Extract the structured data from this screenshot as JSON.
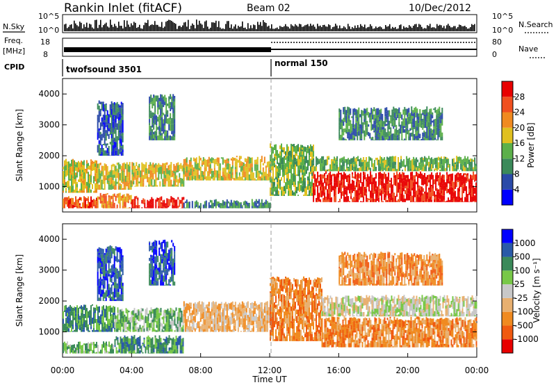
{
  "header": {
    "station": "Rankin Inlet (fitACF)",
    "beam": "Beam 02",
    "date": "10/Dec/2012"
  },
  "strip": {
    "nsky_label": "N.Sky",
    "nsearch_label": "N.Search",
    "freq_label_1": "Freq.",
    "freq_label_2": "[MHz]",
    "nave_label": "Nave",
    "cpid_label": "CPID",
    "nsky_ticks": [
      "10^5",
      "10^0"
    ],
    "nsearch_ticks": [
      "10^5",
      "10^0"
    ],
    "freq_ticks": [
      "18",
      "8"
    ],
    "nave_ticks": [
      "80",
      "0"
    ],
    "cpid_segments": [
      {
        "name": "twofsound 3501",
        "start_hr": 0,
        "end_hr": 12
      },
      {
        "name": "normal 150",
        "start_hr": 12,
        "end_hr": 24
      }
    ]
  },
  "chart_data": [
    {
      "type": "heatmap",
      "title": "",
      "parameter": "Power",
      "xlabel": "",
      "ylabel": "Slant Range [km]",
      "xlim_hr": [
        0,
        24
      ],
      "ylim": [
        180,
        4500
      ],
      "yticks": [
        1000,
        2000,
        3000,
        4000
      ],
      "colorbar": {
        "label": "Power [dB]",
        "colors": [
          "#0000ff",
          "#2a4aa8",
          "#3b8a5a",
          "#5cb04a",
          "#e0c020",
          "#f08a20",
          "#f05020",
          "#e80000"
        ],
        "tick_labels": [
          "4",
          "8",
          "12",
          "16",
          "20",
          "24",
          "28"
        ]
      },
      "bands": [
        {
          "start_hr": 0,
          "end_hr": 2.0,
          "y_lo": 300,
          "y_hi": 700,
          "level": 6
        },
        {
          "start_hr": 0,
          "end_hr": 2.0,
          "y_lo": 800,
          "y_hi": 1900,
          "level": 4
        },
        {
          "start_hr": 2.0,
          "end_hr": 4.0,
          "y_lo": 300,
          "y_hi": 800,
          "level": 5
        },
        {
          "start_hr": 2.0,
          "end_hr": 4.0,
          "y_lo": 900,
          "y_hi": 1800,
          "level": 4
        },
        {
          "start_hr": 4.0,
          "end_hr": 7.0,
          "y_lo": 300,
          "y_hi": 700,
          "level": 7
        },
        {
          "start_hr": 4.0,
          "end_hr": 7.0,
          "y_lo": 1000,
          "y_hi": 1800,
          "level": 4
        },
        {
          "start_hr": 7.0,
          "end_hr": 12.0,
          "y_lo": 1200,
          "y_hi": 2000,
          "level": 4
        },
        {
          "start_hr": 7.0,
          "end_hr": 12.0,
          "y_lo": 300,
          "y_hi": 600,
          "level": 2
        },
        {
          "start_hr": 12.0,
          "end_hr": 14.5,
          "y_lo": 700,
          "y_hi": 2400,
          "level": 3
        },
        {
          "start_hr": 14.5,
          "end_hr": 24.0,
          "y_lo": 500,
          "y_hi": 1500,
          "level": 7
        },
        {
          "start_hr": 14.5,
          "end_hr": 24.0,
          "y_lo": 1500,
          "y_hi": 2000,
          "level": 3
        },
        {
          "start_hr": 16.0,
          "end_hr": 22.0,
          "y_lo": 2500,
          "y_hi": 3600,
          "level": 2
        },
        {
          "start_hr": 2.0,
          "end_hr": 3.5,
          "y_lo": 2000,
          "y_hi": 3800,
          "level": 1
        },
        {
          "start_hr": 5.0,
          "end_hr": 6.5,
          "y_lo": 2500,
          "y_hi": 4000,
          "level": 2
        }
      ]
    },
    {
      "type": "heatmap",
      "title": "",
      "parameter": "Velocity",
      "xlabel": "Time UT",
      "ylabel": "Slant Range [km]",
      "xlim_hr": [
        0,
        24
      ],
      "ylim": [
        180,
        4500
      ],
      "yticks": [
        1000,
        2000,
        3000,
        4000
      ],
      "xtick_labels": [
        "00:00",
        "04:00",
        "08:00",
        "12:00",
        "16:00",
        "20:00",
        "00:00"
      ],
      "colorbar": {
        "label": "Velocity [m s⁻¹]",
        "colors": [
          "#e80000",
          "#f05a10",
          "#f08a20",
          "#e8b070",
          "#c8c8c8",
          "#78c848",
          "#3b8a5a",
          "#2a5aa8",
          "#0000ff"
        ],
        "tick_labels": [
          "-1000",
          "-500",
          "-100",
          "-25",
          "25",
          "100",
          "500",
          "1000"
        ]
      },
      "bands": [
        {
          "start_hr": 0,
          "end_hr": 3.0,
          "y_lo": 300,
          "y_hi": 700,
          "level": 5
        },
        {
          "start_hr": 0,
          "end_hr": 3.0,
          "y_lo": 1000,
          "y_hi": 1900,
          "level": 6
        },
        {
          "start_hr": 3.0,
          "end_hr": 7.0,
          "y_lo": 300,
          "y_hi": 900,
          "level": 6
        },
        {
          "start_hr": 3.0,
          "end_hr": 7.0,
          "y_lo": 1000,
          "y_hi": 1800,
          "level": 5
        },
        {
          "start_hr": 7.0,
          "end_hr": 12.0,
          "y_lo": 1000,
          "y_hi": 2000,
          "level": 3
        },
        {
          "start_hr": 12.0,
          "end_hr": 15.0,
          "y_lo": 700,
          "y_hi": 2800,
          "level": 2
        },
        {
          "start_hr": 15.0,
          "end_hr": 24.0,
          "y_lo": 500,
          "y_hi": 1500,
          "level": 2
        },
        {
          "start_hr": 15.0,
          "end_hr": 24.0,
          "y_lo": 1500,
          "y_hi": 2200,
          "level": 4
        },
        {
          "start_hr": 16.0,
          "end_hr": 22.0,
          "y_lo": 2500,
          "y_hi": 3600,
          "level": 2
        },
        {
          "start_hr": 2.0,
          "end_hr": 3.5,
          "y_lo": 2000,
          "y_hi": 3800,
          "level": 7
        },
        {
          "start_hr": 5.0,
          "end_hr": 6.5,
          "y_lo": 2500,
          "y_hi": 4000,
          "level": 7
        }
      ]
    }
  ]
}
